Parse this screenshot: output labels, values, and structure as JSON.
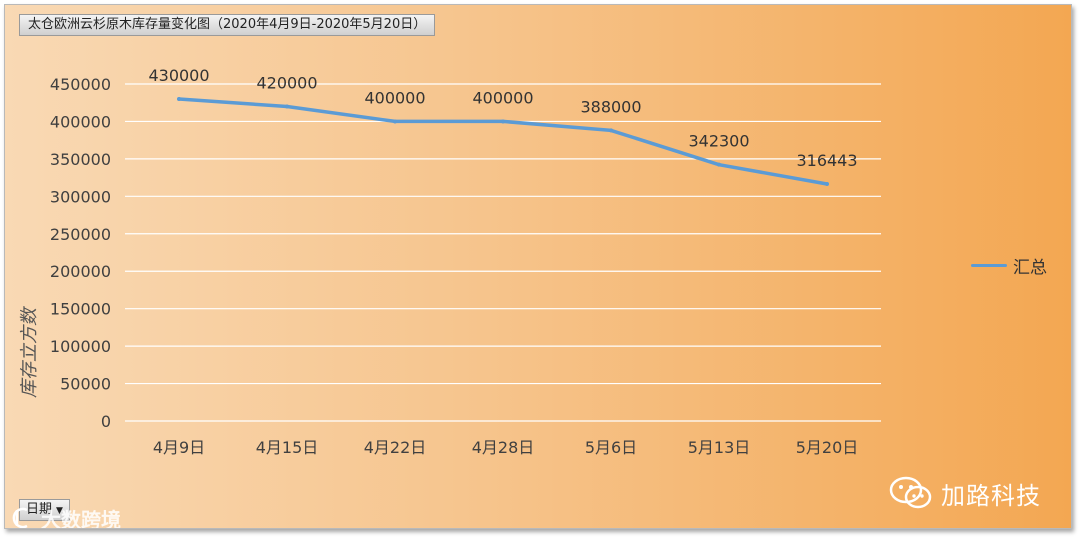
{
  "header": {
    "title_tag": "太仓欧洲云杉原木库存量变化图（2020年4月9日-2020年5月20日）"
  },
  "controls": {
    "field_button": "日期"
  },
  "watermarks": {
    "right_text": "加路科技",
    "left_text": "大数跨境"
  },
  "colors": {
    "series_line": "#5b9bd5",
    "gridline": "#ffffff",
    "tick_text": "#404040"
  },
  "chart_data": {
    "type": "line",
    "title": "太仓欧洲云杉原木库存量变化图（2020年4月9日-2020年5月20日）",
    "categories": [
      "4月9日",
      "4月15日",
      "4月22日",
      "4月28日",
      "5月6日",
      "5月13日",
      "5月20日"
    ],
    "series": [
      {
        "name": "汇总",
        "values": [
          430000,
          420000,
          400000,
          400000,
          388000,
          342300,
          316443
        ]
      }
    ],
    "data_labels": [
      "430000",
      "420000",
      "400000",
      "400000",
      "388000",
      "342300",
      "316443"
    ],
    "yticks": [
      "0",
      "50000",
      "100000",
      "150000",
      "200000",
      "250000",
      "300000",
      "350000",
      "400000",
      "450000"
    ],
    "ylabel": "库存立方数",
    "xlabel": "",
    "ylim": [
      0,
      450000
    ],
    "grid": true,
    "legend": "right"
  }
}
